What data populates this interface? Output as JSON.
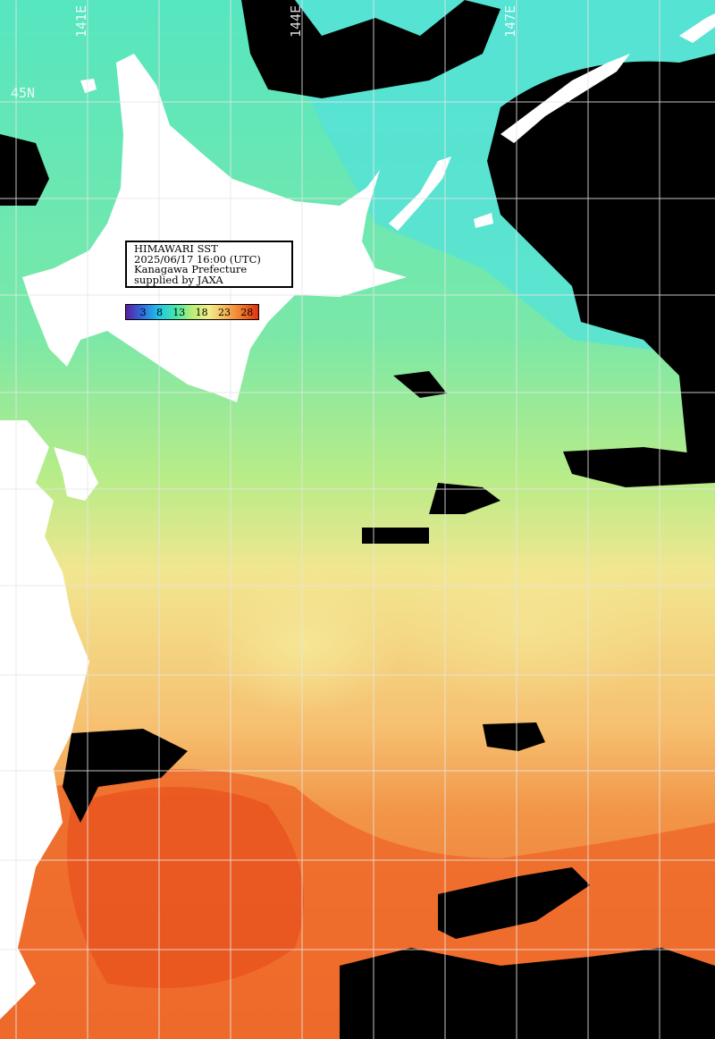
{
  "info": {
    "line1": "HIMAWARI SST",
    "line2": "2025/06/17 16:00 (UTC)",
    "line3": "Kanagawa Prefecture",
    "line4": "supplied by JAXA"
  },
  "colorbar": {
    "ticks": [
      "3",
      "8",
      "13",
      "18",
      "23",
      "28"
    ],
    "unit": "",
    "colors": [
      "#5a1fa0",
      "#2f6de0",
      "#22c6e6",
      "#45e6a8",
      "#b8ee78",
      "#f2ee8a",
      "#f7b55a",
      "#f0782a",
      "#e03010"
    ]
  },
  "grid": {
    "lat_label": "45N",
    "lon_labels": [
      "141E",
      "144E",
      "147E"
    ]
  },
  "palette": {
    "land": "#ffffff",
    "cloud": "#000000",
    "grid": "#dddddd",
    "cold_sea": "#5ee8c0",
    "cool_sea": "#8fe898",
    "mild_sea": "#c8ec88",
    "warm_sea": "#f7e090",
    "hot_sea": "#f29a48",
    "hotter_sea": "#ee6a2a"
  }
}
